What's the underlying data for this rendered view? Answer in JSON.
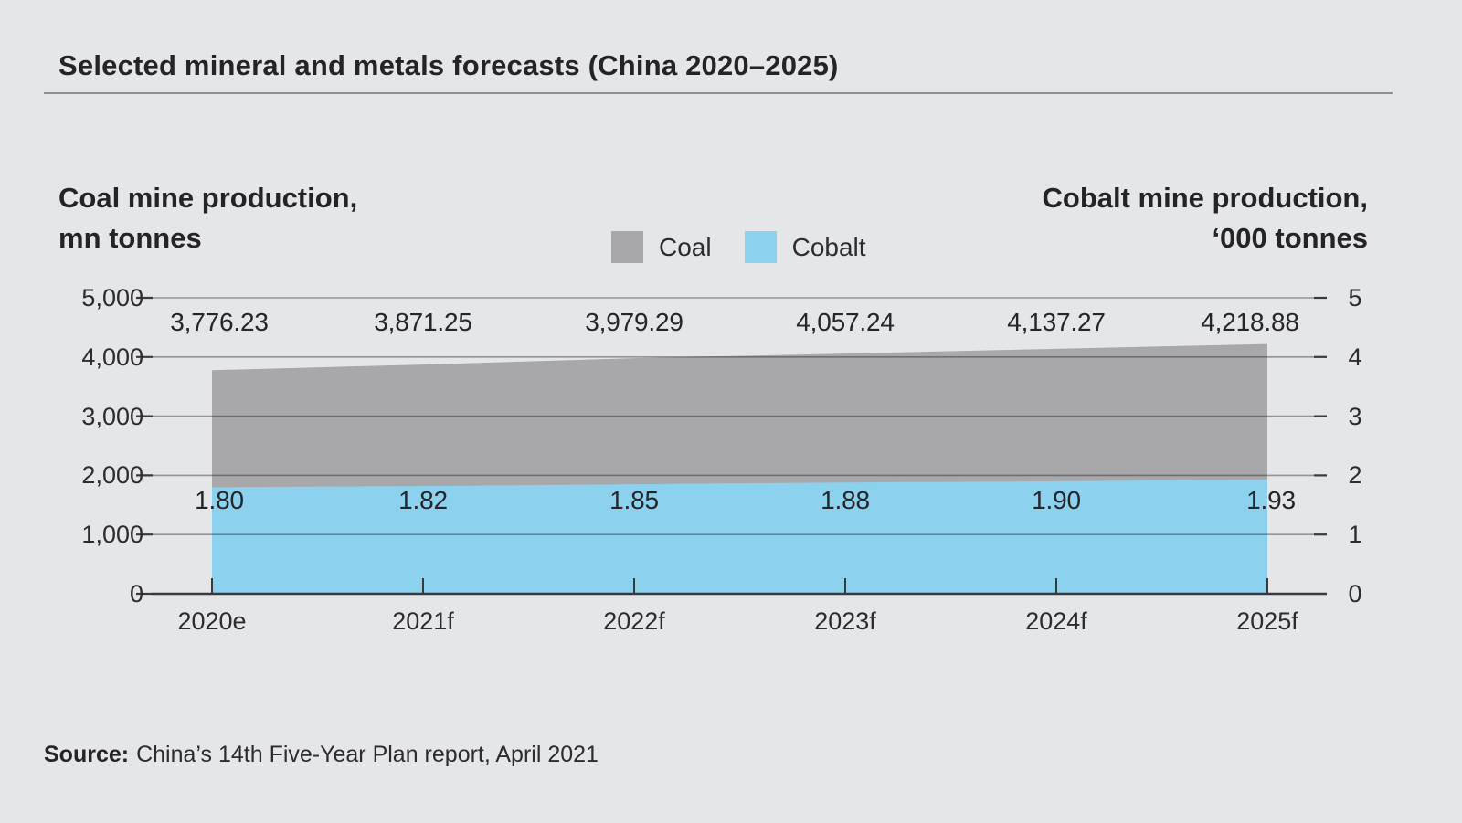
{
  "figure": {
    "title": "Selected mineral and metals forecasts (China 2020–2025)",
    "source": {
      "label": "Source:",
      "text": "China’s 14th Five-Year Plan report, April 2021"
    }
  },
  "colors": {
    "background": "#e5e6e8",
    "coal": "#a8a7aa",
    "cobalt": "#8cd2ee",
    "text": "#242328",
    "axis": "#3a393d",
    "gridline": "rgba(25,25,30,0.40)",
    "divider": "#8f8f93"
  },
  "chart_data": {
    "type": "area",
    "categories": [
      "2020e",
      "2021f",
      "2022f",
      "2023f",
      "2024f",
      "2025f"
    ],
    "series": [
      {
        "name": "Coal",
        "axis": "left",
        "color": "#a8a7aa",
        "values": [
          3776.23,
          3871.25,
          3979.29,
          4057.24,
          4137.27,
          4218.88
        ],
        "labels": [
          "3,776.23",
          "3,871.25",
          "3,979.29",
          "4,057.24",
          "4,137.27",
          "4,218.88"
        ]
      },
      {
        "name": "Cobalt",
        "axis": "right",
        "color": "#8cd2ee",
        "values": [
          1.8,
          1.82,
          1.85,
          1.88,
          1.9,
          1.93
        ],
        "labels": [
          "1.80",
          "1.82",
          "1.85",
          "1.88",
          "1.90",
          "1.93"
        ]
      }
    ],
    "left_axis": {
      "title_lines": [
        "Coal mine production,",
        "mn tonnes"
      ],
      "min": 0,
      "max": 5000,
      "ticks": [
        "5,000",
        "4,000",
        "3,000",
        "2,000",
        "1,000",
        "0"
      ]
    },
    "right_axis": {
      "title_lines": [
        "Cobalt mine production,",
        "‘000 tonnes"
      ],
      "min": 0,
      "max": 5,
      "ticks": [
        "5",
        "4",
        "3",
        "2",
        "1",
        "0"
      ]
    },
    "grid": true,
    "legend_position": "top-center"
  }
}
